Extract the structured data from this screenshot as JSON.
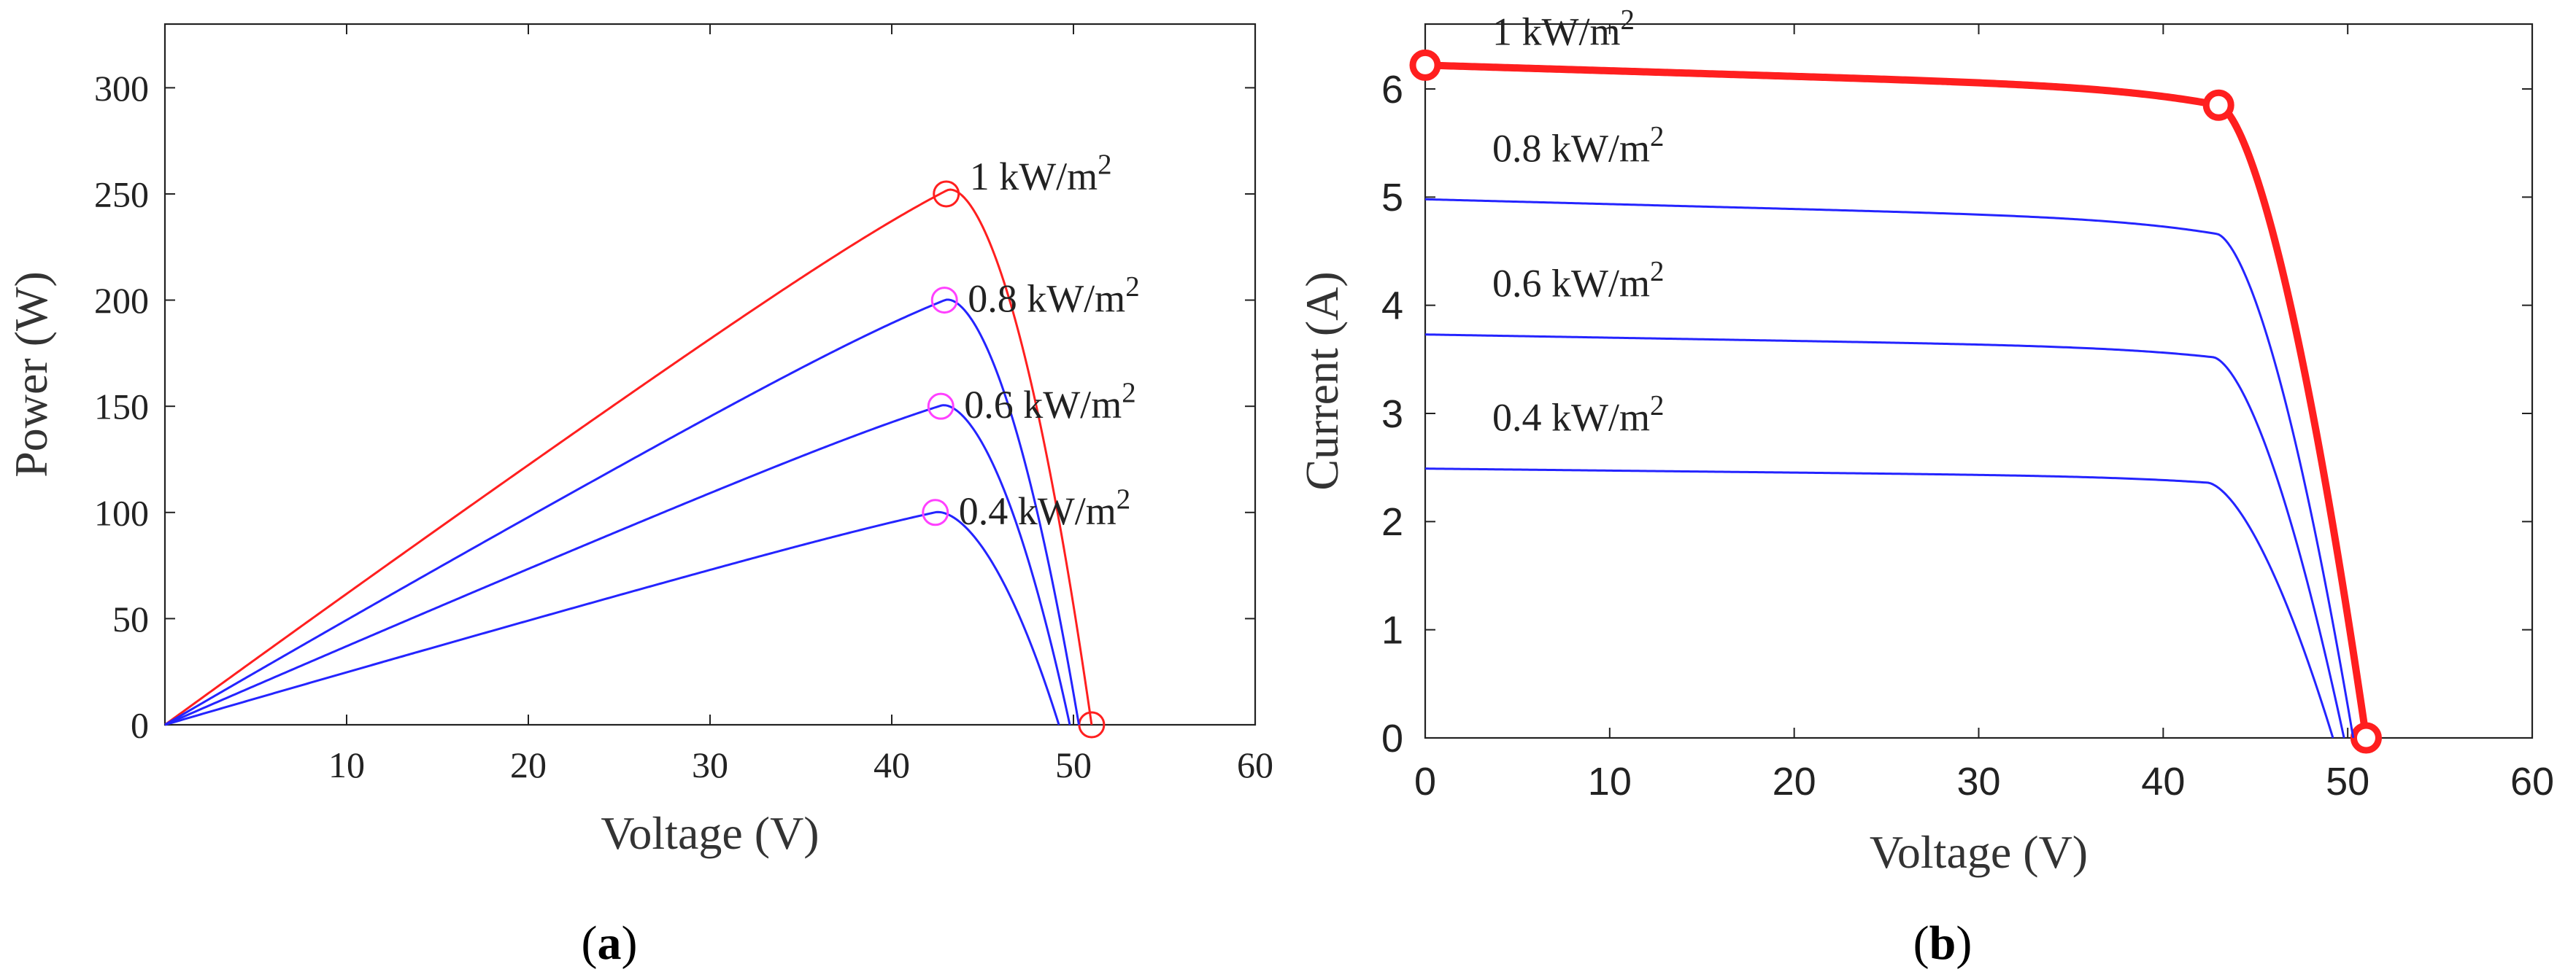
{
  "colors": {
    "red": "#ff1f1f",
    "blue": "#2424ff",
    "magenta": "#ff40ff",
    "axis": "#000000"
  },
  "chart_data": [
    {
      "type": "line",
      "caption": "(a)",
      "caption_letter": "a",
      "title": "",
      "xlabel": "Voltage (V)",
      "ylabel": "Power (W)",
      "xlim": [
        0,
        60
      ],
      "ylim": [
        0,
        330
      ],
      "xticks": [
        10,
        20,
        30,
        40,
        50,
        60
      ],
      "yticks": [
        0,
        50,
        100,
        150,
        200,
        250,
        300
      ],
      "grid": false,
      "series": [
        {
          "name": "1 kW/m2",
          "label_base": "1 kW/m",
          "label_sup": "2",
          "color": "red",
          "isc": 6.22,
          "voc": 51,
          "vmp": 43,
          "imp": 5.85,
          "mpp": {
            "x": 43,
            "y": 250
          },
          "endpoint": {
            "x": 51,
            "y": 0
          }
        },
        {
          "name": "0.8 kW/m2",
          "label_base": "0.8 kW/m",
          "label_sup": "2",
          "color": "blue",
          "isc": 4.98,
          "voc": 50.3,
          "vmp": 42.9,
          "imp": 4.66,
          "mpp": {
            "x": 42.9,
            "y": 200
          }
        },
        {
          "name": "0.6 kW/m2",
          "label_base": "0.6 kW/m",
          "label_sup": "2",
          "color": "blue",
          "isc": 3.73,
          "voc": 49.8,
          "vmp": 42.7,
          "imp": 3.52,
          "mpp": {
            "x": 42.7,
            "y": 150
          }
        },
        {
          "name": "0.4 kW/m2",
          "label_base": "0.4 kW/m",
          "label_sup": "2",
          "color": "blue",
          "isc": 2.49,
          "voc": 49.2,
          "vmp": 42.4,
          "imp": 2.36,
          "mpp": {
            "x": 42.4,
            "y": 100
          }
        }
      ]
    },
    {
      "type": "line",
      "caption": "(b)",
      "caption_letter": "b",
      "title": "",
      "xlabel": "Voltage (V)",
      "ylabel": "Current (A)",
      "xlim": [
        0,
        60
      ],
      "ylim": [
        0,
        6.6
      ],
      "xticks": [
        0,
        10,
        20,
        30,
        40,
        50,
        60
      ],
      "yticks": [
        0,
        1,
        2,
        3,
        4,
        5,
        6
      ],
      "grid": false,
      "series": [
        {
          "name": "1 kW/m2",
          "label_base": "1 kW/m",
          "label_sup": "2",
          "color": "red",
          "isc": 6.22,
          "voc": 51,
          "vmp": 43,
          "imp": 5.85,
          "markers": [
            {
              "x": 0,
              "y": 6.22
            },
            {
              "x": 43,
              "y": 5.85
            },
            {
              "x": 51,
              "y": 0
            }
          ]
        },
        {
          "name": "0.8 kW/m2",
          "label_base": "0.8 kW/m",
          "label_sup": "2",
          "color": "blue",
          "isc": 4.98,
          "voc": 50.3,
          "vmp": 42.9,
          "imp": 4.66
        },
        {
          "name": "0.6 kW/m2",
          "label_base": "0.6 kW/m",
          "label_sup": "2",
          "color": "blue",
          "isc": 3.73,
          "voc": 49.8,
          "vmp": 42.7,
          "imp": 3.52
        },
        {
          "name": "0.4 kW/m2",
          "label_base": "0.4 kW/m",
          "label_sup": "2",
          "color": "blue",
          "isc": 2.49,
          "voc": 49.2,
          "vmp": 42.4,
          "imp": 2.36
        }
      ]
    }
  ]
}
